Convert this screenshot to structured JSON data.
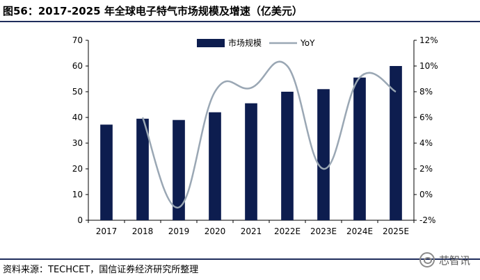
{
  "header": {
    "title": "图56：2017-2025 年全球电子特气市场规模及增速（亿美元）"
  },
  "footer": {
    "source": "资料来源：TECHCET，国信证券经济研究所整理",
    "watermark": "芯智讯"
  },
  "colors": {
    "bar": "#0d1d4f",
    "line": "#9aa7b4",
    "rule": "#1f2d5c"
  },
  "chart_data": {
    "type": "bar",
    "categories": [
      "2017",
      "2018",
      "2019",
      "2020",
      "2021",
      "2022E",
      "2023E",
      "2024E",
      "2025E"
    ],
    "series": [
      {
        "name": "市场规模",
        "type": "bar",
        "axis": "left",
        "values": [
          37.2,
          39.5,
          39.0,
          42.0,
          45.5,
          50.0,
          51.0,
          55.5,
          60.0
        ]
      },
      {
        "name": "YoY",
        "type": "line",
        "axis": "right",
        "unit": "%",
        "values": [
          null,
          6.0,
          -1.0,
          8.0,
          8.3,
          10.0,
          2.0,
          9.1,
          8.0
        ]
      }
    ],
    "ylim_left": [
      0,
      70
    ],
    "ylim_right": [
      -2,
      12
    ],
    "yticks_left": [
      "0",
      "10",
      "20",
      "30",
      "40",
      "50",
      "60",
      "70"
    ],
    "yticks_right": [
      "-2%",
      "0%",
      "2%",
      "4%",
      "6%",
      "8%",
      "10%",
      "12%"
    ],
    "legend_position": "top-center",
    "grid": false
  }
}
